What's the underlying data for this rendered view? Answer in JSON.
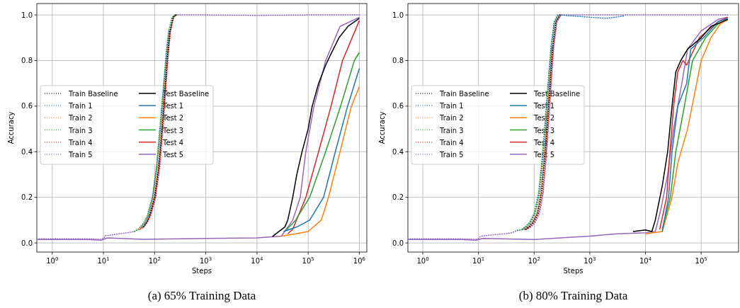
{
  "chart_data": [
    {
      "type": "line",
      "title": "(a) 65% Training Data",
      "xlabel": "Steps",
      "ylabel": "Accuracy",
      "log": "x",
      "grid": true,
      "legend": "left",
      "xlim": [
        0.5,
        1400000
      ],
      "ylim": [
        -0.04,
        1.05
      ],
      "xticks": [
        {
          "value": 1,
          "label": "10$^{0}$"
        },
        {
          "value": 10,
          "label": "10$^{1}$"
        },
        {
          "value": 100,
          "label": "10$^{2}$"
        },
        {
          "value": 1000,
          "label": "10$^{3}$"
        },
        {
          "value": 10000,
          "label": "10$^{4}$"
        },
        {
          "value": 100000,
          "label": "10$^{5}$"
        },
        {
          "value": 1000000,
          "label": "10$^{6}$"
        }
      ],
      "yticks": [
        {
          "value": 0,
          "label": "0.0"
        },
        {
          "value": 0.2,
          "label": "0.2"
        },
        {
          "value": 0.4,
          "label": "0.4"
        },
        {
          "value": 0.6,
          "label": "0.6"
        },
        {
          "value": 0.8,
          "label": "0.8"
        },
        {
          "value": 1,
          "label": "1.0"
        }
      ],
      "series": [
        {
          "name": "Train Baseline",
          "color": "#000000",
          "line_style": "dotted",
          "x": [
            60,
            70,
            80,
            100,
            120,
            140,
            160,
            180,
            200,
            230,
            260
          ],
          "values": [
            0.07,
            0.09,
            0.12,
            0.2,
            0.33,
            0.5,
            0.68,
            0.83,
            0.93,
            0.99,
            1.0
          ]
        },
        {
          "name": "Train 1",
          "color": "#1f77b4",
          "line_style": "dotted",
          "x": [
            55,
            65,
            75,
            92,
            110,
            130,
            150,
            170,
            190
          ],
          "values": [
            0.07,
            0.09,
            0.12,
            0.2,
            0.33,
            0.5,
            0.68,
            0.83,
            0.93
          ]
        },
        {
          "name": "Train 2",
          "color": "#ff7f0e",
          "line_style": "dotted",
          "x": [
            50,
            58,
            68,
            78,
            96,
            115,
            135,
            155,
            175,
            195
          ],
          "values": [
            0.06,
            0.07,
            0.09,
            0.12,
            0.2,
            0.33,
            0.5,
            0.68,
            0.83,
            0.93
          ]
        },
        {
          "name": "Train 3",
          "color": "#2ca02c",
          "line_style": "dotted",
          "x": [
            40,
            48,
            52,
            62,
            72,
            90,
            108,
            148,
            168,
            188,
            218,
            248
          ],
          "values": [
            0.05,
            0.06,
            0.07,
            0.09,
            0.12,
            0.2,
            0.33,
            0.68,
            0.83,
            0.93,
            0.99,
            1.0
          ]
        },
        {
          "name": "Train 4",
          "color": "#d62728",
          "line_style": "dotted",
          "x": [
            52,
            62,
            72,
            84,
            105,
            126,
            146,
            166,
            186,
            206,
            236,
            270
          ],
          "values": [
            0.06,
            0.07,
            0.09,
            0.12,
            0.2,
            0.33,
            0.5,
            0.68,
            0.83,
            0.93,
            0.99,
            1.0
          ]
        },
        {
          "name": "Train 5",
          "color": "#9467bd",
          "line_style": "dotted",
          "x": [
            0.5,
            5,
            9,
            10,
            11,
            15,
            20,
            30,
            40,
            50,
            60,
            70,
            82,
            102,
            122,
            142,
            162,
            182,
            202,
            232,
            265,
            300,
            1000,
            10000,
            100000,
            1000000
          ],
          "values": [
            0.018,
            0.018,
            0.016,
            0.02,
            0.032,
            0.035,
            0.04,
            0.045,
            0.05,
            0.06,
            0.07,
            0.09,
            0.12,
            0.2,
            0.33,
            0.5,
            0.68,
            0.83,
            0.93,
            0.99,
            1.0,
            1.0,
            1.0,
            0.998,
            1.0,
            1.0
          ]
        },
        {
          "name": "Test Baseline",
          "color": "#000000",
          "line_style": "solid",
          "x": [
            20000,
            25000,
            35000,
            40000,
            50000,
            60000,
            76000,
            100000,
            120000,
            160000,
            220000,
            280000,
            400000,
            600000,
            1000000
          ],
          "values": [
            0.028,
            0.045,
            0.07,
            0.1,
            0.2,
            0.3,
            0.4,
            0.5,
            0.6,
            0.7,
            0.78,
            0.83,
            0.9,
            0.95,
            0.985
          ]
        },
        {
          "name": "Test 1",
          "color": "#1f77b4",
          "line_style": "solid",
          "x": [
            33000,
            60000,
            107000,
            200000,
            340000,
            590000,
            1000000
          ],
          "values": [
            0.05,
            0.07,
            0.1,
            0.2,
            0.4,
            0.6,
            0.765
          ]
        },
        {
          "name": "Test 2",
          "color": "#ff7f0e",
          "line_style": "solid",
          "x": [
            30000,
            57000,
            100000,
            180000,
            250000,
            420000,
            700000,
            1000000
          ],
          "values": [
            0.03,
            0.04,
            0.05,
            0.1,
            0.2,
            0.4,
            0.6,
            0.685
          ]
        },
        {
          "name": "Test 3",
          "color": "#2ca02c",
          "line_style": "solid",
          "x": [
            35000,
            57000,
            107000,
            220000,
            430000,
            800000,
            1000000
          ],
          "values": [
            0.05,
            0.1,
            0.2,
            0.4,
            0.6,
            0.8,
            0.835
          ]
        },
        {
          "name": "Test 4",
          "color": "#d62728",
          "line_style": "solid",
          "x": [
            40000,
            50000,
            90000,
            160000,
            280000,
            470000,
            1000000
          ],
          "values": [
            0.04,
            0.06,
            0.2,
            0.4,
            0.6,
            0.8,
            0.975
          ]
        },
        {
          "name": "Test 5",
          "color": "#9467bd",
          "line_style": "solid",
          "x": [
            0.5,
            5,
            9,
            12,
            60,
            1000,
            10000,
            30000,
            50000,
            70000,
            90000,
            130000,
            220000,
            420000,
            1000000
          ],
          "values": [
            0.015,
            0.015,
            0.012,
            0.022,
            0.016,
            0.02,
            0.022,
            0.03,
            0.1,
            0.2,
            0.4,
            0.6,
            0.8,
            0.95,
            0.99
          ]
        }
      ]
    },
    {
      "type": "line",
      "title": "(b) 80% Training Data",
      "xlabel": "Steps",
      "ylabel": "Accuracy",
      "log": "x",
      "grid": true,
      "legend": "left",
      "xlim": [
        0.54,
        470000
      ],
      "ylim": [
        -0.04,
        1.05
      ],
      "xticks": [
        {
          "value": 1,
          "label": "10$^{0}$"
        },
        {
          "value": 10,
          "label": "10$^{1}$"
        },
        {
          "value": 100,
          "label": "10$^{2}$"
        },
        {
          "value": 1000,
          "label": "10$^{3}$"
        },
        {
          "value": 10000,
          "label": "10$^{4}$"
        },
        {
          "value": 100000,
          "label": "10$^{5}$"
        }
      ],
      "yticks": [
        {
          "value": 0,
          "label": "0.0"
        },
        {
          "value": 0.2,
          "label": "0.2"
        },
        {
          "value": 0.4,
          "label": "0.4"
        },
        {
          "value": 0.6,
          "label": "0.6"
        },
        {
          "value": 0.8,
          "label": "0.8"
        },
        {
          "value": 1,
          "label": "1.0"
        }
      ],
      "series": [
        {
          "name": "Train Baseline",
          "color": "#000000",
          "line_style": "dotted",
          "x": [
            70,
            80,
            95,
            115,
            135,
            155,
            175,
            195,
            215,
            245,
            290
          ],
          "values": [
            0.06,
            0.07,
            0.09,
            0.13,
            0.22,
            0.38,
            0.55,
            0.72,
            0.86,
            0.97,
            1.0
          ]
        },
        {
          "name": "Train 1",
          "color": "#1f77b4",
          "line_style": "dotted",
          "x": [
            62,
            72,
            86,
            104,
            124,
            144,
            164,
            184,
            204,
            234,
            275,
            1000,
            2000,
            4000
          ],
          "values": [
            0.06,
            0.07,
            0.09,
            0.13,
            0.22,
            0.38,
            0.55,
            0.72,
            0.86,
            0.97,
            1.0,
            0.99,
            0.985,
            0.995
          ]
        },
        {
          "name": "Train 2",
          "color": "#ff7f0e",
          "line_style": "dotted",
          "x": [
            66,
            76,
            90,
            110,
            130,
            150,
            170,
            190,
            210
          ],
          "values": [
            0.06,
            0.07,
            0.09,
            0.13,
            0.22,
            0.38,
            0.55,
            0.72,
            0.86
          ]
        },
        {
          "name": "Train 3",
          "color": "#2ca02c",
          "line_style": "dotted",
          "x": [
            50,
            60,
            68,
            82,
            100,
            120,
            140,
            180,
            200,
            228,
            265
          ],
          "values": [
            0.055,
            0.06,
            0.07,
            0.09,
            0.13,
            0.22,
            0.38,
            0.72,
            0.86,
            0.97,
            1.0
          ]
        },
        {
          "name": "Train 4",
          "color": "#d62728",
          "line_style": "dotted",
          "x": [
            72,
            84,
            100,
            120,
            142,
            162,
            182,
            202,
            222,
            252,
            300
          ],
          "values": [
            0.06,
            0.07,
            0.09,
            0.13,
            0.22,
            0.38,
            0.55,
            0.72,
            0.86,
            0.97,
            1.0
          ]
        },
        {
          "name": "Train 5",
          "color": "#9467bd",
          "line_style": "dotted",
          "x": [
            0.54,
            5,
            9,
            10,
            11,
            15,
            20,
            30,
            40,
            50,
            75,
            88,
            104,
            125,
            146,
            166,
            186,
            206,
            226,
            258,
            305,
            1000,
            10000,
            100000,
            300000
          ],
          "values": [
            0.018,
            0.018,
            0.016,
            0.02,
            0.03,
            0.033,
            0.037,
            0.04,
            0.045,
            0.055,
            0.06,
            0.07,
            0.09,
            0.13,
            0.22,
            0.38,
            0.55,
            0.72,
            0.86,
            0.97,
            1.0,
            1.0,
            1.0,
            1.0,
            1.0
          ]
        },
        {
          "name": "Test Baseline",
          "color": "#000000",
          "line_style": "solid",
          "x": [
            6000,
            10000,
            13000,
            15000,
            20000,
            25000,
            30000,
            35000,
            43000,
            57000,
            100000,
            150000,
            300000
          ],
          "values": [
            0.05,
            0.057,
            0.05,
            0.1,
            0.25,
            0.4,
            0.6,
            0.75,
            0.8,
            0.85,
            0.9,
            0.95,
            0.98
          ]
        },
        {
          "name": "Test 1",
          "color": "#1f77b4",
          "line_style": "solid",
          "x": [
            20000,
            26000,
            30000,
            38000,
            55000,
            65000,
            110000,
            200000,
            300000
          ],
          "values": [
            0.05,
            0.2,
            0.4,
            0.6,
            0.7,
            0.85,
            0.9,
            0.97,
            0.985
          ]
        },
        {
          "name": "Test 2",
          "color": "#ff7f0e",
          "line_style": "solid",
          "x": [
            10000,
            20000,
            30000,
            38000,
            57000,
            83000,
            100000,
            150000,
            220000,
            300000
          ],
          "values": [
            0.04,
            0.05,
            0.2,
            0.35,
            0.5,
            0.7,
            0.8,
            0.9,
            0.96,
            0.98
          ]
        },
        {
          "name": "Test 3",
          "color": "#2ca02c",
          "line_style": "solid",
          "x": [
            20000,
            28000,
            35000,
            50000,
            70000,
            120000,
            200000,
            300000
          ],
          "values": [
            0.06,
            0.2,
            0.4,
            0.6,
            0.8,
            0.9,
            0.96,
            0.98
          ]
        },
        {
          "name": "Test 4",
          "color": "#d62728",
          "line_style": "solid",
          "x": [
            18000,
            24000,
            27500,
            32000,
            38000,
            47000,
            55000,
            93000,
            200000,
            300000
          ],
          "values": [
            0.06,
            0.2,
            0.4,
            0.6,
            0.75,
            0.8,
            0.78,
            0.9,
            0.97,
            0.99
          ]
        },
        {
          "name": "Test 5",
          "color": "#9467bd",
          "line_style": "solid",
          "x": [
            0.54,
            5,
            9,
            12,
            100,
            1000,
            3000,
            10000,
            15000,
            19000,
            25000,
            32000,
            45000,
            57000,
            100000,
            200000,
            300000
          ],
          "values": [
            0.015,
            0.015,
            0.012,
            0.02,
            0.015,
            0.03,
            0.04,
            0.045,
            0.05,
            0.15,
            0.3,
            0.5,
            0.7,
            0.85,
            0.93,
            0.98,
            0.99
          ]
        }
      ]
    }
  ]
}
